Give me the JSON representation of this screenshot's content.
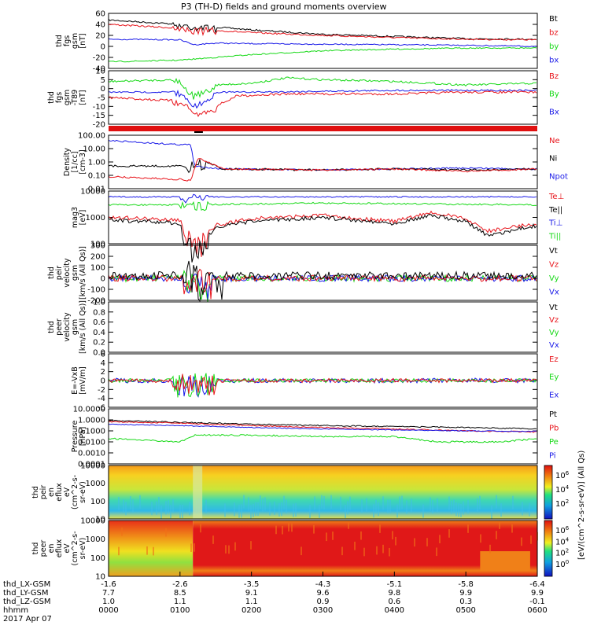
{
  "title": "P3 (TH-D) fields and ground moments overview",
  "colors": {
    "black": "#000000",
    "red": "#e8141b",
    "green": "#16d916",
    "blue": "#1a1ae8",
    "axis": "#000000"
  },
  "panels": [
    {
      "id": "fgs_gsm",
      "ylabel": [
        "thd",
        "fgs",
        "gsm",
        "[nT]"
      ],
      "yticks": [
        "60",
        "40",
        "20",
        "0",
        "-20",
        "-40"
      ],
      "ylim": [
        -40,
        60
      ],
      "legend": [
        {
          "text": "Bt",
          "color": "black"
        },
        {
          "text": "bz",
          "color": "red"
        },
        {
          "text": "by",
          "color": "green"
        },
        {
          "text": "bx",
          "color": "blue"
        }
      ]
    },
    {
      "id": "fgs_dsl",
      "ylabel": [
        "thd",
        "fgs",
        "gsm",
        "-T89",
        "[nT]"
      ],
      "yticks": [
        "10",
        "5",
        "0",
        "-5",
        "-10",
        "-15",
        "-20"
      ],
      "ylim": [
        -20,
        10
      ],
      "legend": [
        {
          "text": "Bz",
          "color": "red"
        },
        {
          "text": "By",
          "color": "green"
        },
        {
          "text": "Bx",
          "color": "blue"
        }
      ]
    },
    {
      "id": "density",
      "ylabel": [
        "Density",
        "[1/cc]",
        "[cm-3]"
      ],
      "yticks": [
        "100.00",
        "10.00",
        "1.00",
        "0.10",
        "0.01"
      ],
      "scale": "log",
      "legend": [
        {
          "text": "Ne",
          "color": "red"
        },
        {
          "text": "Ni",
          "color": "black"
        },
        {
          "text": "Npot",
          "color": "blue"
        }
      ]
    },
    {
      "id": "temperature",
      "ylabel": [
        "mag3",
        "[eV]"
      ],
      "yticks": [
        "10000",
        "1000",
        "100"
      ],
      "scale": "log",
      "legend": [
        {
          "text": "Te⊥",
          "color": "red"
        },
        {
          "text": "Te||",
          "color": "black"
        },
        {
          "text": "Ti⊥",
          "color": "blue"
        },
        {
          "text": "Ti||",
          "color": "green"
        }
      ]
    },
    {
      "id": "ion_velocity",
      "ylabel": [
        "thd",
        "peir",
        "velocity",
        "gsm",
        "[km/s (All Qs)]"
      ],
      "yticks": [
        "300",
        "200",
        "100",
        "0",
        "-100",
        "-200"
      ],
      "ylim": [
        -200,
        300
      ],
      "legend": [
        {
          "text": "Vt",
          "color": "black"
        },
        {
          "text": "Vz",
          "color": "red"
        },
        {
          "text": "Vy",
          "color": "green"
        },
        {
          "text": "Vx",
          "color": "blue"
        }
      ]
    },
    {
      "id": "electron_velocity",
      "ylabel": [
        "thd",
        "peer",
        "velocity",
        "gsm",
        "[km/s (All Qs)]"
      ],
      "yticks": [
        "1.0",
        "0.8",
        "0.6",
        "0.4",
        "0.2",
        "0.0"
      ],
      "ylim": [
        0,
        1
      ],
      "legend": [
        {
          "text": "Vt",
          "color": "black"
        },
        {
          "text": "Vz",
          "color": "red"
        },
        {
          "text": "Vy",
          "color": "green"
        },
        {
          "text": "Vx",
          "color": "blue"
        }
      ]
    },
    {
      "id": "efield",
      "ylabel": [
        "E=-VxB",
        "[mV/m]"
      ],
      "yticks": [
        "6",
        "4",
        "2",
        "0",
        "-2",
        "-4",
        "-6"
      ],
      "ylim": [
        -6,
        6
      ],
      "legend": [
        {
          "text": "Ez",
          "color": "red"
        },
        {
          "text": "Ey",
          "color": "green"
        },
        {
          "text": "Ex",
          "color": "blue"
        }
      ]
    },
    {
      "id": "pressure",
      "ylabel": [
        "Pressure",
        "[nPa]"
      ],
      "yticks": [
        "10.0000",
        "1.0000",
        "0.1000",
        "0.0100",
        "0.0010",
        "0.0001"
      ],
      "scale": "log",
      "legend": [
        {
          "text": "Pt",
          "color": "black"
        },
        {
          "text": "Pb",
          "color": "red"
        },
        {
          "text": "Pe",
          "color": "green"
        },
        {
          "text": "Pi",
          "color": "blue"
        }
      ]
    },
    {
      "id": "ion_spec",
      "ylabel": [
        "thd",
        "peir",
        "en",
        "eflux",
        "eV",
        "(cm^2-s-",
        "sr-eV)"
      ],
      "yticks": [
        "10000",
        "1000",
        "100",
        "10"
      ]
    },
    {
      "id": "electron_spec",
      "ylabel": [
        "thd",
        "peer",
        "en",
        "eflux",
        "eV",
        "(cm^2-s-",
        "sr-eV)"
      ],
      "yticks": [
        "10000",
        "1000",
        "100",
        "10"
      ]
    }
  ],
  "colorbar_ticks_top": [
    "10^6",
    "10^4",
    "10^2"
  ],
  "colorbar_ticks_bottom": [
    "10^6",
    "10^4",
    "10^2",
    "10^0"
  ],
  "colorbar_label": "[eV/(cm^2-s-sr-eV)] (All Qs)",
  "xaxis": {
    "rows": [
      {
        "name": "thd_LX-GSM",
        "values": [
          "-1.6",
          "-2.6",
          "-3.5",
          "-4.3",
          "-5.1",
          "-5.8",
          "-6.4"
        ]
      },
      {
        "name": "thd_LY-GSM",
        "values": [
          "7.7",
          "8.5",
          "9.1",
          "9.6",
          "9.8",
          "9.9",
          "9.9"
        ]
      },
      {
        "name": "thd_LZ-GSM",
        "values": [
          "1.0",
          "1.1",
          "1.1",
          "0.9",
          "0.6",
          "0.3",
          "-0.1"
        ]
      },
      {
        "name": "hhmm",
        "values": [
          "0000",
          "0100",
          "0200",
          "0300",
          "0400",
          "0500",
          "0600"
        ]
      }
    ],
    "date": "2017 Apr 07"
  },
  "chart_data": {
    "type": "line",
    "title": "P3 (TH-D) fields and ground moments overview",
    "x_hhmm": [
      "0000",
      "0100",
      "0200",
      "0300",
      "0400",
      "0500",
      "0600"
    ],
    "series": [
      {
        "name": "Bt",
        "panel": "fgs_gsm",
        "x": [
          0,
          1,
          2,
          3,
          4,
          5,
          6
        ],
        "y": [
          48,
          40,
          30,
          22,
          18,
          14,
          13
        ]
      },
      {
        "name": "bz",
        "panel": "fgs_gsm",
        "x": [
          0,
          1,
          2,
          3,
          4,
          5,
          6
        ],
        "y": [
          40,
          33,
          25,
          20,
          16,
          13,
          12
        ]
      },
      {
        "name": "by",
        "panel": "fgs_gsm",
        "x": [
          0,
          1,
          2,
          3,
          4,
          5,
          6
        ],
        "y": [
          -28,
          -25,
          -15,
          -8,
          -5,
          -3,
          -3
        ]
      },
      {
        "name": "bx",
        "panel": "fgs_gsm",
        "x": [
          0,
          1,
          2,
          3,
          4,
          5,
          6
        ],
        "y": [
          13,
          12,
          5,
          4,
          3,
          2,
          0
        ]
      },
      {
        "name": "Bz",
        "panel": "fgs_dsl",
        "x": [
          0,
          1,
          2,
          3,
          4,
          5,
          6
        ],
        "y": [
          -5,
          -7,
          -3,
          -3,
          -3,
          -2,
          -2
        ]
      },
      {
        "name": "By",
        "panel": "fgs_dsl",
        "x": [
          0,
          1,
          2,
          3,
          4,
          5,
          6
        ],
        "y": [
          4,
          5,
          3,
          5,
          4,
          2,
          3
        ]
      },
      {
        "name": "Bx",
        "panel": "fgs_dsl",
        "x": [
          0,
          1,
          2,
          3,
          4,
          5,
          6
        ],
        "y": [
          -2,
          -2,
          -2,
          -1,
          -1,
          -1,
          -1
        ]
      },
      {
        "name": "Ne",
        "panel": "density",
        "x": [
          0,
          1,
          2,
          3,
          4,
          5,
          6
        ],
        "y": [
          0.08,
          0.05,
          0.3,
          0.25,
          0.3,
          0.2,
          0.3
        ]
      },
      {
        "name": "Ni",
        "panel": "density",
        "x": [
          0,
          1,
          2,
          3,
          4,
          5,
          6
        ],
        "y": [
          0.5,
          0.5,
          0.3,
          0.25,
          0.3,
          0.25,
          0.3
        ]
      },
      {
        "name": "Npot",
        "panel": "density",
        "x": [
          0,
          1,
          2,
          3,
          4,
          5,
          6
        ],
        "y": [
          40,
          20,
          0.3,
          0.25,
          0.3,
          0.35,
          0.3
        ]
      },
      {
        "name": "Te⊥",
        "panel": "temperature",
        "x": [
          0,
          1,
          2,
          3,
          4,
          5,
          6
        ],
        "y": [
          1000,
          800,
          900,
          1200,
          700,
          900,
          600
        ]
      },
      {
        "name": "Ti||",
        "panel": "temperature",
        "x": [
          0,
          1,
          2,
          3,
          4,
          5,
          6
        ],
        "y": [
          3000,
          3000,
          3000,
          3500,
          3000,
          3000,
          3000
        ]
      },
      {
        "name": "Pt",
        "panel": "pressure",
        "x": [
          0,
          1,
          2,
          3,
          4,
          5,
          6
        ],
        "y": [
          0.9,
          0.6,
          0.4,
          0.3,
          0.25,
          0.2,
          0.15
        ]
      },
      {
        "name": "Pb",
        "panel": "pressure",
        "x": [
          0,
          1,
          2,
          3,
          4,
          5,
          6
        ],
        "y": [
          0.7,
          0.5,
          0.3,
          0.2,
          0.15,
          0.1,
          0.08
        ]
      },
      {
        "name": "Pe",
        "panel": "pressure",
        "x": [
          0,
          1,
          2,
          3,
          4,
          5,
          6
        ],
        "y": [
          0.02,
          0.01,
          0.04,
          0.03,
          0.03,
          0.01,
          0.02
        ]
      },
      {
        "name": "Pi",
        "panel": "pressure",
        "x": [
          0,
          1,
          2,
          3,
          4,
          5,
          6
        ],
        "y": [
          0.4,
          0.3,
          0.2,
          0.15,
          0.12,
          0.1,
          0.09
        ]
      }
    ]
  }
}
